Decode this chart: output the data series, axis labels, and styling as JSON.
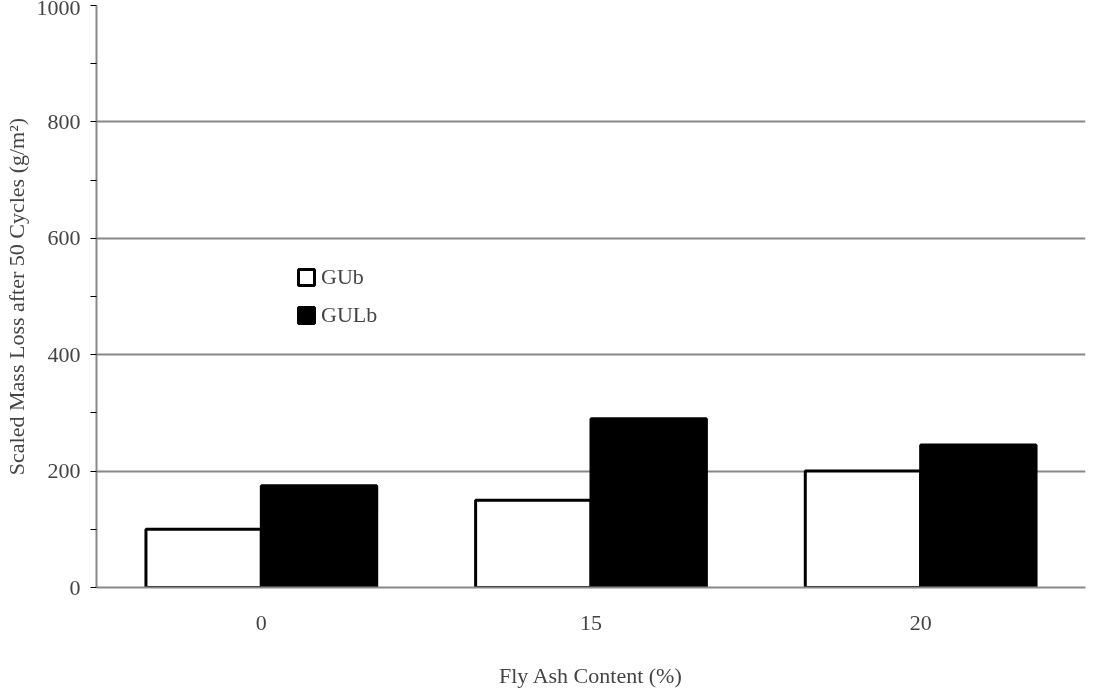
{
  "chart_data": {
    "type": "bar",
    "xlabel": "Fly Ash Content (%)",
    "ylabel": "Scaled Mass Loss after 50 Cycles (g/m²)",
    "categories": [
      "0",
      "15",
      "20"
    ],
    "series": [
      {
        "name": "GUb",
        "color": "#ffffff",
        "values": [
          100,
          150,
          200
        ]
      },
      {
        "name": "GULb",
        "color": "#000000",
        "values": [
          175,
          290,
          245
        ]
      }
    ],
    "ylim": [
      0,
      1000
    ],
    "yticks": [
      0,
      {
        "value": 100,
        "label": null
      },
      200,
      {
        "value": 300,
        "label": null
      },
      400,
      {
        "value": 500,
        "label": null
      },
      600,
      {
        "value": 700,
        "label": null
      },
      800,
      {
        "value": 900,
        "label": null
      },
      1000
    ],
    "grid": "y",
    "legend": "left"
  }
}
